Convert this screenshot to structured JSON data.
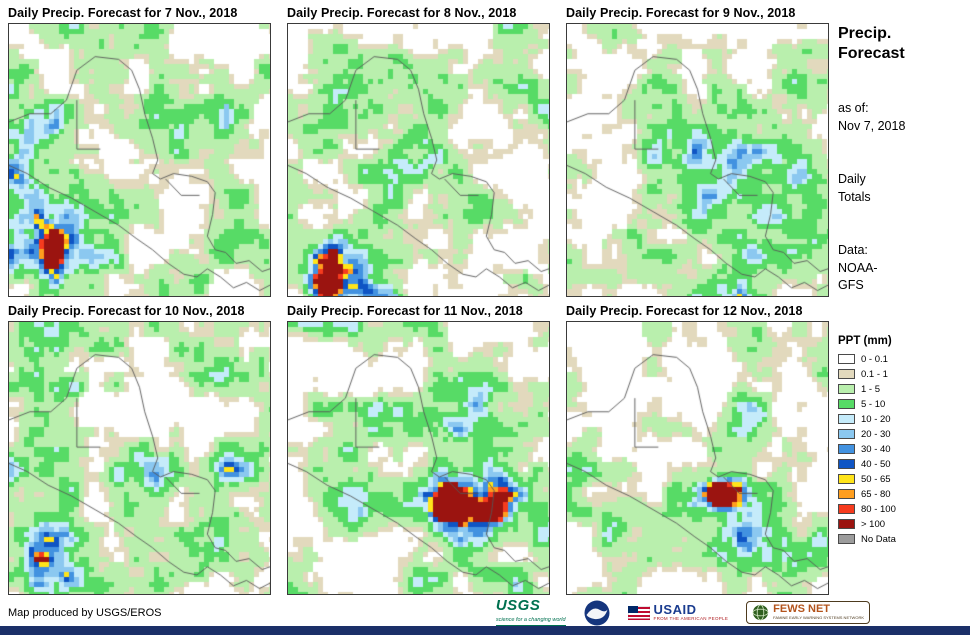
{
  "panels": [
    {
      "title": "Daily Precip. Forecast for 7 Nov., 2018"
    },
    {
      "title": "Daily Precip. Forecast for 8 Nov., 2018"
    },
    {
      "title": "Daily Precip. Forecast for 9 Nov., 2018"
    },
    {
      "title": "Daily Precip. Forecast for 10 Nov., 2018"
    },
    {
      "title": "Daily Precip. Forecast for 11 Nov., 2018"
    },
    {
      "title": "Daily Precip. Forecast for 12 Nov., 2018"
    }
  ],
  "sidebar": {
    "title_line1": "Precip.",
    "title_line2": "Forecast",
    "as_of_label": "as of:",
    "as_of_date": "Nov 7, 2018",
    "totals_line1": "Daily",
    "totals_line2": "Totals",
    "data_label": "Data:",
    "data_source_line1": "NOAA-",
    "data_source_line2": "GFS"
  },
  "legend": {
    "title": "PPT (mm)",
    "items": [
      {
        "label": "0 - 0.1",
        "color": "#FFFFFF"
      },
      {
        "label": "0.1 - 1",
        "color": "#E2D9BD"
      },
      {
        "label": "1 - 5",
        "color": "#B9EFAD"
      },
      {
        "label": "5 - 10",
        "color": "#57DB66"
      },
      {
        "label": "10 - 20",
        "color": "#C5EBFA"
      },
      {
        "label": "20 - 30",
        "color": "#8BC8F0"
      },
      {
        "label": "30 - 40",
        "color": "#4292E0"
      },
      {
        "label": "40 - 50",
        "color": "#0F55C4"
      },
      {
        "label": "50 - 65",
        "color": "#FFE41A"
      },
      {
        "label": "65 - 80",
        "color": "#FF9E1E"
      },
      {
        "label": "80 - 100",
        "color": "#F63B1E"
      },
      {
        "label": "> 100",
        "color": "#9B1410"
      },
      {
        "label": "No Data",
        "color": "#9C9C9C"
      }
    ]
  },
  "footer": {
    "credit": "Map produced by USGS/EROS",
    "logos": [
      {
        "name": "USGS",
        "tagline": "science for a changing world"
      },
      {
        "name": "NOAA",
        "tagline": ""
      },
      {
        "name": "USAID",
        "tagline": "FROM THE AMERICAN PEOPLE"
      },
      {
        "name": "FEWS NET",
        "tagline": "FAMINE EARLY WARNING SYSTEMS NETWORK"
      }
    ]
  }
}
